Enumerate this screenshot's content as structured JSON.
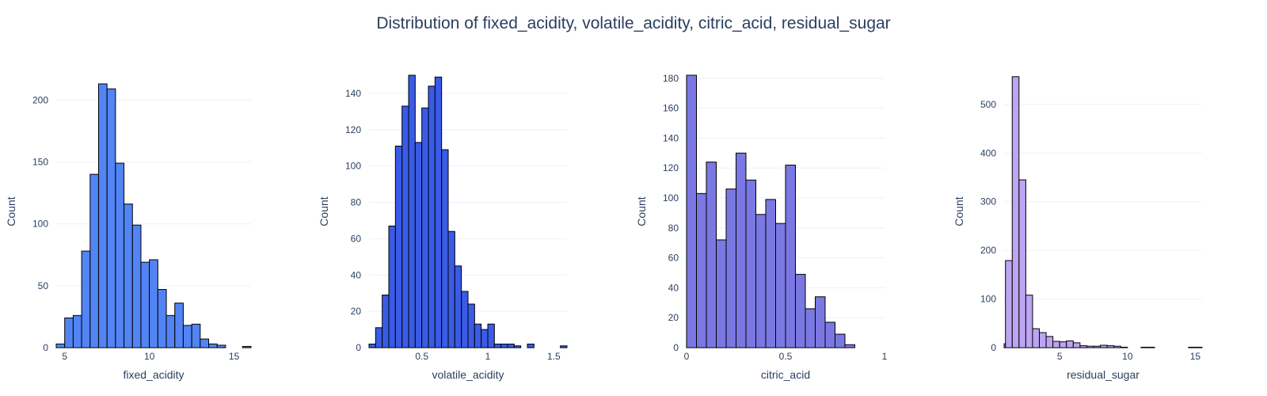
{
  "title": "Distribution of fixed_acidity, volatile_acidity, citric_acid, residual_sugar",
  "colors": {
    "text": "#2a3f5f",
    "grid": "#ebf0f8",
    "bar_outline": "#000000"
  },
  "chart_data": [
    {
      "type": "bar",
      "histogram": true,
      "xlabel": "fixed_acidity",
      "ylabel": "Count",
      "color": "#5284f4",
      "bin_width": 0.5,
      "x_start": 4.5,
      "counts": [
        3,
        24,
        26,
        78,
        140,
        213,
        209,
        149,
        116,
        99,
        69,
        71,
        47,
        26,
        36,
        18,
        19,
        7,
        3,
        2,
        0,
        0,
        1,
        4
      ],
      "xlim": [
        4.5,
        16.0
      ],
      "ylim": [
        0,
        220
      ],
      "xticks": [
        5,
        10,
        15
      ],
      "yticks": [
        0,
        50,
        100,
        150,
        200
      ]
    },
    {
      "type": "bar",
      "histogram": true,
      "xlabel": "volatile_acidity",
      "ylabel": "Count",
      "color": "#3a5be6",
      "bin_width": 0.05,
      "x_start": 0.1,
      "counts": [
        2,
        11,
        29,
        67,
        111,
        133,
        150,
        113,
        132,
        144,
        149,
        109,
        64,
        45,
        31,
        24,
        13,
        10,
        13,
        2,
        2,
        2,
        1,
        0,
        2,
        0,
        0,
        0,
        0,
        1
      ],
      "xlim": [
        0.1,
        1.6
      ],
      "ylim": [
        0,
        150
      ],
      "xticks": [
        0.5,
        1,
        1.5
      ],
      "yticks": [
        0,
        20,
        40,
        60,
        80,
        100,
        120,
        140
      ]
    },
    {
      "type": "bar",
      "histogram": true,
      "xlabel": "citric_acid",
      "ylabel": "Count",
      "color": "#7a78e2",
      "bin_width": 0.05,
      "x_start": 0,
      "counts": [
        182,
        103,
        124,
        72,
        106,
        130,
        112,
        89,
        99,
        83,
        122,
        49,
        26,
        34,
        17,
        9,
        2,
        0,
        0,
        0,
        1
      ],
      "xlim": [
        0,
        1.0
      ],
      "ylim": [
        0,
        182
      ],
      "xticks": [
        0,
        0.5,
        1
      ],
      "yticks": [
        0,
        20,
        40,
        60,
        80,
        100,
        120,
        140,
        160,
        180
      ]
    },
    {
      "type": "bar",
      "histogram": true,
      "xlabel": "residual_sugar",
      "ylabel": "Count",
      "color": "#bca5f2",
      "bin_width": 0.5,
      "x_start": 0.5,
      "counts": [
        8,
        179,
        557,
        345,
        108,
        39,
        31,
        23,
        13,
        12,
        14,
        10,
        4,
        3,
        3,
        5,
        4,
        3,
        1,
        0,
        0,
        1,
        1,
        0,
        0,
        0,
        0,
        0,
        1,
        1,
        1,
        0,
        0,
        0,
        2
      ],
      "xlim": [
        0.9,
        15.5
      ],
      "ylim": [
        0,
        560
      ],
      "xticks": [
        5,
        10,
        15
      ],
      "yticks": [
        0,
        100,
        200,
        300,
        400,
        500
      ]
    }
  ]
}
